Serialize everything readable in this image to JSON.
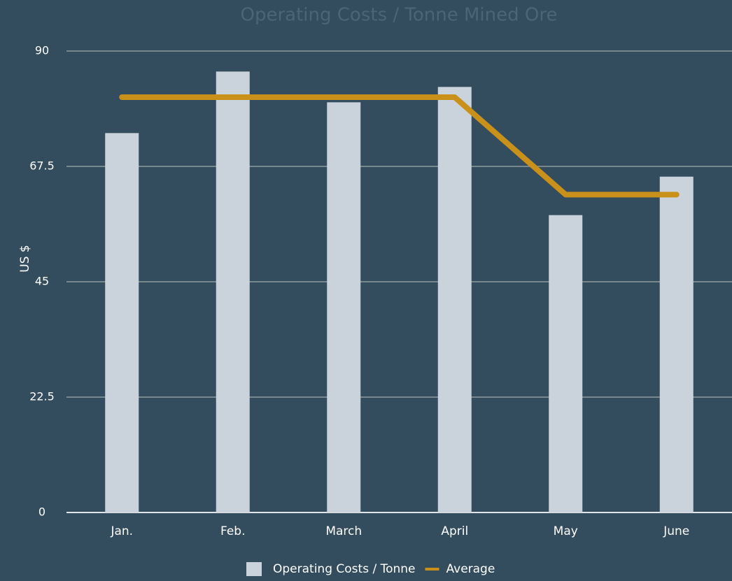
{
  "chart_data": {
    "type": "bar",
    "title": "Operating Costs / Tonne Mined Ore",
    "y_label": "US $",
    "categories": [
      "Jan.",
      "Feb.",
      "March",
      "April",
      "May",
      "June"
    ],
    "series": [
      {
        "name": "Operating Costs / Tonne",
        "color": "#cad3db",
        "values": [
          74,
          86,
          80,
          83,
          58,
          65.5
        ]
      },
      {
        "name": "Average",
        "color": "#c9911a",
        "type": "line",
        "values": [
          81,
          81,
          81,
          81,
          62,
          62
        ]
      }
    ],
    "ylim": [
      0,
      90
    ],
    "yticks": [
      0,
      22.5,
      45,
      67.5,
      90
    ],
    "grid": true
  }
}
